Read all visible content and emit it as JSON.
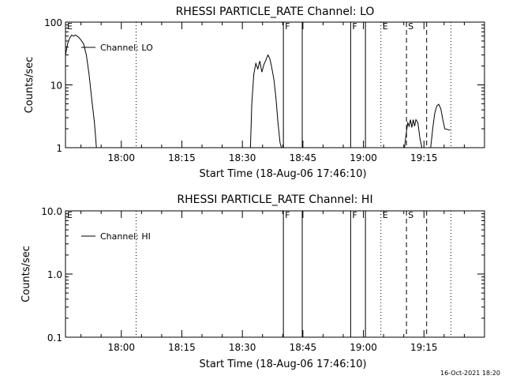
{
  "chart_data": [
    {
      "type": "line",
      "title": "RHESSI PARTICLE_RATE Channel: LO",
      "ylabel": "Counts/sec",
      "xlabel": "Start Time (18-Aug-06 17:46:10)",
      "yscale": "log",
      "ylim": [
        1,
        100
      ],
      "xlim": [
        "17:46:10",
        "19:30:00"
      ],
      "grid": false,
      "legend_position": "top-left",
      "x_ticks": [
        "18:00",
        "18:15",
        "18:30",
        "18:45",
        "19:00",
        "19:15"
      ],
      "y_ticks": [
        "1",
        "10",
        "100"
      ],
      "series": [
        {
          "name": "Channel: LO",
          "color": "#000000",
          "segments": [
            [
              [
                "17:46:10",
                30
              ],
              [
                "17:46:40",
                45
              ],
              [
                "17:47:10",
                55
              ],
              [
                "17:47:40",
                62
              ],
              [
                "17:48:10",
                60
              ],
              [
                "17:48:40",
                62
              ],
              [
                "17:49:20",
                58
              ],
              [
                "17:50:00",
                52
              ],
              [
                "17:50:40",
                45
              ],
              [
                "17:51:20",
                30
              ],
              [
                "17:52:00",
                15
              ],
              [
                "17:52:40",
                6
              ],
              [
                "17:53:20",
                2.5
              ],
              [
                "17:53:50",
                1
              ]
            ],
            [
              [
                "18:32:00",
                1
              ],
              [
                "18:32:20",
                5
              ],
              [
                "18:32:50",
                15
              ],
              [
                "18:33:20",
                22
              ],
              [
                "18:33:50",
                18
              ],
              [
                "18:34:20",
                24
              ],
              [
                "18:34:50",
                16
              ],
              [
                "18:35:20",
                21
              ],
              [
                "18:35:50",
                25
              ],
              [
                "18:36:20",
                30
              ],
              [
                "18:36:50",
                26
              ],
              [
                "18:37:20",
                18
              ],
              [
                "18:37:50",
                12
              ],
              [
                "18:38:20",
                6
              ],
              [
                "18:38:50",
                2.5
              ],
              [
                "18:39:20",
                1.2
              ],
              [
                "18:39:40",
                1
              ]
            ],
            [
              [
                "19:10:10",
                1
              ],
              [
                "19:10:40",
                1.8
              ],
              [
                "19:11:00",
                2.5
              ],
              [
                "19:11:20",
                2.2
              ],
              [
                "19:11:40",
                2.8
              ],
              [
                "19:12:00",
                2.1
              ],
              [
                "19:12:20",
                2.8
              ],
              [
                "19:12:40",
                2.2
              ],
              [
                "19:13:00",
                2.8
              ],
              [
                "19:13:30",
                2.5
              ],
              [
                "19:14:00",
                1.4
              ],
              [
                "19:14:30",
                1
              ]
            ],
            [
              [
                "19:16:40",
                1
              ],
              [
                "19:17:10",
                2
              ],
              [
                "19:17:40",
                3.5
              ],
              [
                "19:18:10",
                4.6
              ],
              [
                "19:18:40",
                4.9
              ],
              [
                "19:19:10",
                4.2
              ],
              [
                "19:19:40",
                2.8
              ],
              [
                "19:20:10",
                2
              ],
              [
                "19:21:30",
                1.9
              ]
            ]
          ]
        }
      ],
      "event_markers": [
        {
          "time": "18:03:40",
          "label": "",
          "style": "dotted"
        },
        {
          "time": "18:40:10",
          "label": "F",
          "style": "solid"
        },
        {
          "time": "18:44:50",
          "label": "",
          "style": "solid"
        },
        {
          "time": "18:56:50",
          "label": "F",
          "style": "solid"
        },
        {
          "time": "19:00:30",
          "label": "",
          "style": "solid"
        },
        {
          "time": "19:04:20",
          "label": "E",
          "style": "dotted"
        },
        {
          "time": "19:10:40",
          "label": "S",
          "style": "dashed"
        },
        {
          "time": "19:15:40",
          "label": "",
          "style": "dashed"
        },
        {
          "time": "19:21:40",
          "label": "",
          "style": "dotted"
        },
        {
          "time": "17:46:10",
          "label": "E",
          "style": "none"
        }
      ]
    },
    {
      "type": "line",
      "title": "RHESSI PARTICLE_RATE Channel: HI",
      "ylabel": "Counts/sec",
      "xlabel": "Start Time (18-Aug-06 17:46:10)",
      "yscale": "log",
      "ylim": [
        0.1,
        10.0
      ],
      "xlim": [
        "17:46:10",
        "19:30:00"
      ],
      "grid": false,
      "legend_position": "top-left",
      "x_ticks": [
        "18:00",
        "18:15",
        "18:30",
        "18:45",
        "19:00",
        "19:15"
      ],
      "y_ticks": [
        "0.1",
        "1.0",
        "10.0"
      ],
      "series": [
        {
          "name": "Channel: HI",
          "color": "#000000",
          "segments": []
        }
      ],
      "event_markers": [
        {
          "time": "18:03:40",
          "label": "",
          "style": "dotted"
        },
        {
          "time": "18:40:10",
          "label": "F",
          "style": "solid"
        },
        {
          "time": "18:44:50",
          "label": "",
          "style": "solid"
        },
        {
          "time": "18:56:50",
          "label": "F",
          "style": "solid"
        },
        {
          "time": "19:00:30",
          "label": "",
          "style": "solid"
        },
        {
          "time": "19:04:20",
          "label": "E",
          "style": "dotted"
        },
        {
          "time": "19:10:40",
          "label": "S",
          "style": "dashed"
        },
        {
          "time": "19:15:40",
          "label": "",
          "style": "dashed"
        },
        {
          "time": "19:21:40",
          "label": "",
          "style": "dotted"
        },
        {
          "time": "17:46:10",
          "label": "E",
          "style": "none"
        }
      ]
    }
  ],
  "footer": {
    "timestamp": "16-Oct-2021 18:20"
  }
}
